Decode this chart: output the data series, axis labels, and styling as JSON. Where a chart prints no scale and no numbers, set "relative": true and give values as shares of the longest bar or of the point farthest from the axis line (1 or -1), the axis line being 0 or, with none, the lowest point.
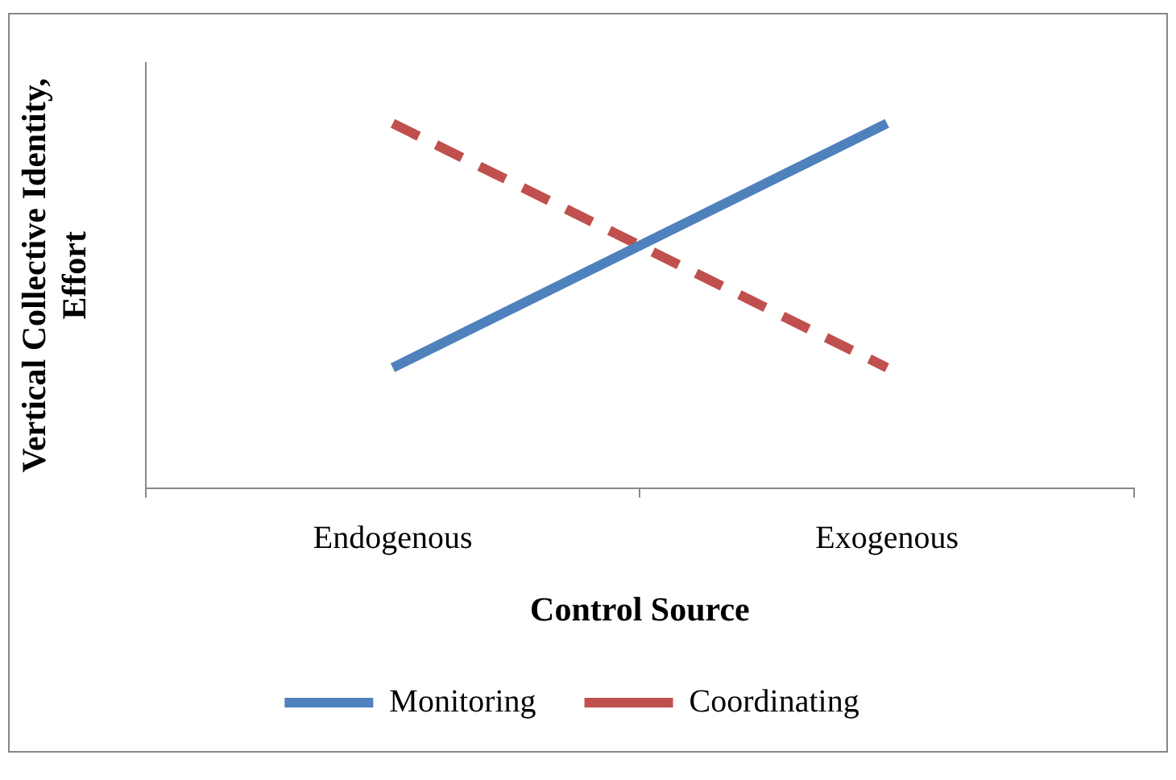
{
  "chart_data": {
    "type": "line",
    "relative": true,
    "xlabel": "Control Source",
    "ylabel": "Vertical Collective Identity, Effort",
    "categories": [
      "Endogenous",
      "Exogenous"
    ],
    "series": [
      {
        "name": "Monitoring",
        "color": "#4f81bd",
        "values": [
          0.33,
          1
        ],
        "line_style": "solid"
      },
      {
        "name": "Coordinating",
        "color": "#c0504d",
        "values": [
          1,
          0.33
        ],
        "line_style": "dashed"
      }
    ],
    "legend": "bottom",
    "marker": "none",
    "grid": false
  }
}
